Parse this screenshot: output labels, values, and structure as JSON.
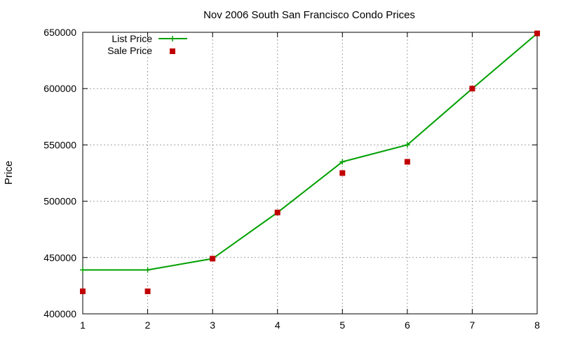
{
  "chart_data": {
    "type": "line",
    "title": "Nov 2006 South San Francisco Condo Prices",
    "xlabel": "",
    "ylabel": "Price",
    "xlim": [
      1,
      8
    ],
    "ylim": [
      400000,
      650000
    ],
    "x_ticks": [
      "1",
      "2",
      "3",
      "4",
      "5",
      "6",
      "7",
      "8"
    ],
    "y_ticks": [
      "400000",
      "450000",
      "500000",
      "550000",
      "600000",
      "650000"
    ],
    "grid": true,
    "legend_position": "top-left",
    "series": [
      {
        "name": "List Price",
        "style": "line-points",
        "marker": "plus",
        "color": "#00a000",
        "x": [
          1,
          2,
          3,
          4,
          5,
          6,
          7,
          8
        ],
        "y": [
          439000,
          439000,
          449000,
          490000,
          535000,
          550000,
          600000,
          649000
        ]
      },
      {
        "name": "Sale Price",
        "style": "points",
        "marker": "square",
        "color": "#c00000",
        "x": [
          1,
          2,
          3,
          4,
          5,
          6,
          7,
          8
        ],
        "y": [
          420000,
          420000,
          449000,
          490000,
          525000,
          535000,
          600000,
          649000
        ]
      }
    ]
  }
}
